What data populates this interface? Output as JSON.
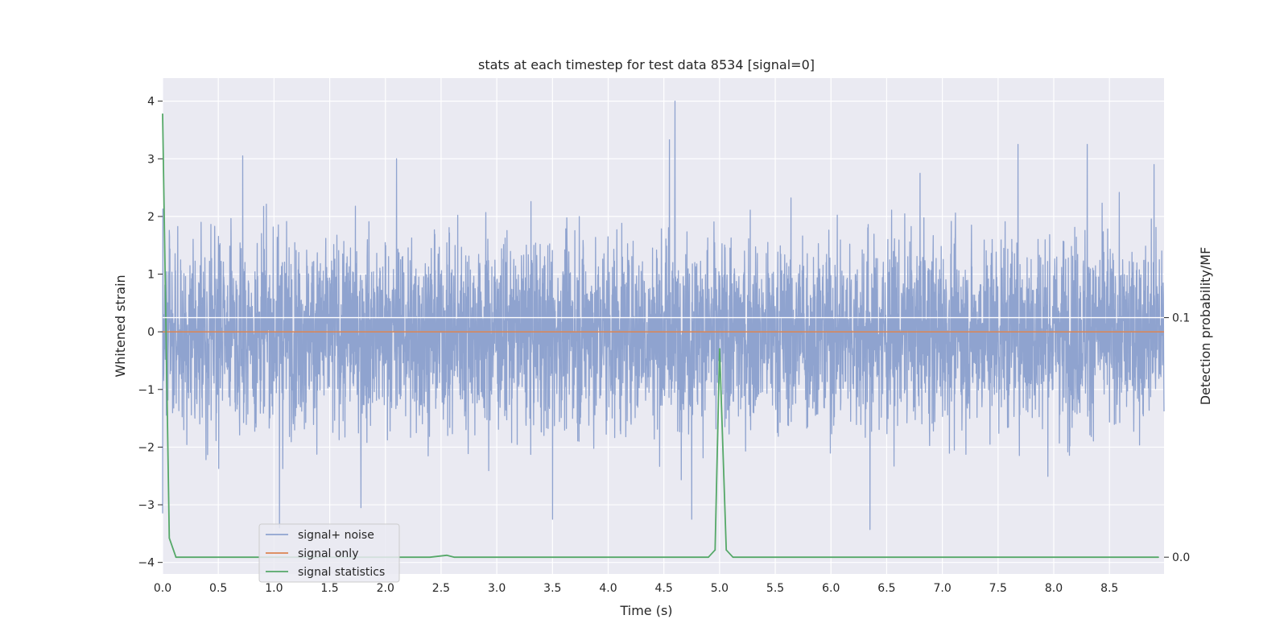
{
  "chart_data": {
    "type": "line",
    "title": "stats at each timestep for test data 8534 [signal=0]",
    "xlabel": "Time (s)",
    "ylabel": "Whitened strain",
    "y2label": "Detection probability/MF",
    "xlim": [
      0.0,
      8.99
    ],
    "ylim": [
      -4.2,
      4.4
    ],
    "y2lim": [
      -0.007,
      0.2
    ],
    "xticks": [
      0.0,
      0.5,
      1.0,
      1.5,
      2.0,
      2.5,
      3.0,
      3.5,
      4.0,
      4.5,
      5.0,
      5.5,
      6.0,
      6.5,
      7.0,
      7.5,
      8.0,
      8.5
    ],
    "xtick_labels": [
      "0.0",
      "0.5",
      "1.0",
      "1.5",
      "2.0",
      "2.5",
      "3.0",
      "3.5",
      "4.0",
      "4.5",
      "5.0",
      "5.5",
      "6.0",
      "6.5",
      "7.0",
      "7.5",
      "8.0",
      "8.5"
    ],
    "yticks": [
      -4,
      -3,
      -2,
      -1,
      0,
      1,
      2,
      3,
      4
    ],
    "ytick_labels": [
      "−4",
      "−3",
      "−2",
      "−1",
      "0",
      "1",
      "2",
      "3",
      "4"
    ],
    "y2ticks": [
      0.0,
      0.1
    ],
    "y2tick_labels": [
      "0.0",
      "0.1"
    ],
    "grid": true,
    "legend_position": "lower-left",
    "series": [
      {
        "name": "signal+ noise",
        "axis": "left",
        "color": "#8fa3cf",
        "description": "dense whitened noise, roughly within ±2 with peaks up to about 4.0 and dips to about -3.4",
        "notable_peaks": [
          {
            "x": 0.0,
            "y": -3.15
          },
          {
            "x": 0.72,
            "y": 3.05
          },
          {
            "x": 1.05,
            "y": -3.4
          },
          {
            "x": 1.78,
            "y": -3.05
          },
          {
            "x": 2.1,
            "y": 3.0
          },
          {
            "x": 3.5,
            "y": -3.25
          },
          {
            "x": 4.55,
            "y": 3.33
          },
          {
            "x": 4.6,
            "y": 4.0
          },
          {
            "x": 4.75,
            "y": -3.25
          },
          {
            "x": 6.35,
            "y": -3.43
          },
          {
            "x": 7.68,
            "y": 3.25
          },
          {
            "x": 8.3,
            "y": 3.25
          },
          {
            "x": 8.9,
            "y": 2.9
          }
        ]
      },
      {
        "name": "signal only",
        "axis": "left",
        "color": "#dd8452",
        "x": [
          0.0,
          9.0
        ],
        "y": [
          0.0,
          0.0
        ]
      },
      {
        "name": "signal statistics",
        "axis": "right",
        "color": "#55a868",
        "x": [
          0.0,
          0.06,
          0.12,
          2.4,
          2.55,
          2.62,
          4.9,
          4.96,
          5.0,
          5.06,
          5.12,
          8.94
        ],
        "y": [
          0.185,
          0.008,
          0.0,
          0.0,
          0.0008,
          0.0,
          0.0,
          0.003,
          0.087,
          0.003,
          0.0,
          0.0
        ]
      }
    ],
    "annotations": [
      {
        "type": "hline",
        "axis": "right",
        "y": 0.1,
        "color": "#ffffff"
      }
    ]
  }
}
